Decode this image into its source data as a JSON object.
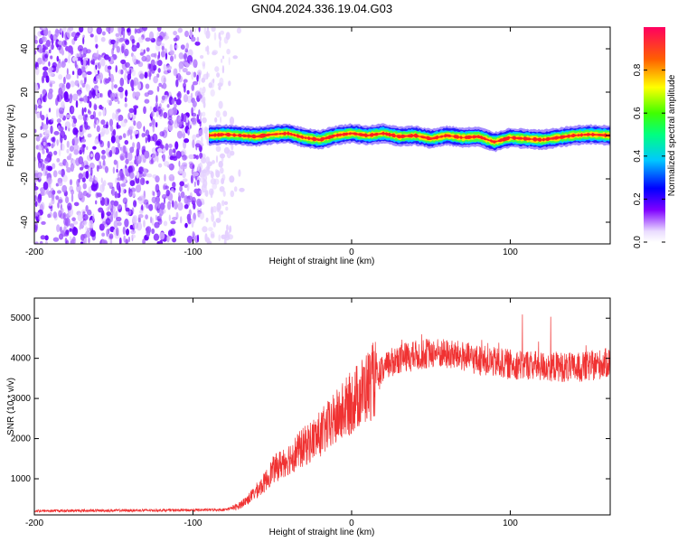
{
  "title": "GN04.2024.336.19.04.G03",
  "colors": {
    "snr_line": "#f03232",
    "purple": "#7f1fff",
    "axis": "#000000"
  },
  "chart_data": [
    {
      "type": "heatmap",
      "xlabel": "Height of straight line (km)",
      "ylabel": "Frequency (Hz)",
      "xlim": [
        -200,
        163
      ],
      "ylim": [
        -50,
        50
      ],
      "x_ticks": [
        "-200",
        "-100",
        "0",
        "100"
      ],
      "y_ticks": [
        "-40",
        "-20",
        "0",
        "20",
        "40"
      ],
      "colorbar_label": "Normalized spectral amplitude",
      "colorbar_ticks": [
        "0.0",
        "0.2",
        "0.4",
        "0.6",
        "0.8"
      ],
      "colorbar_range": [
        0,
        1
      ],
      "noise_region_x": [
        -200,
        -68
      ],
      "signal_x_start": -90,
      "signal_center_freq_hz": [
        [
          -90,
          0.0
        ],
        [
          -80,
          0.5
        ],
        [
          -70,
          0.0
        ],
        [
          -60,
          -0.5
        ],
        [
          -50,
          0.5
        ],
        [
          -40,
          1.0
        ],
        [
          -30,
          -1.0
        ],
        [
          -20,
          -2.0
        ],
        [
          -10,
          0.0
        ],
        [
          0,
          1.0
        ],
        [
          10,
          0.0
        ],
        [
          20,
          1.0
        ],
        [
          30,
          -0.5
        ],
        [
          40,
          0.0
        ],
        [
          50,
          -1.5
        ],
        [
          60,
          0.0
        ],
        [
          70,
          -1.0
        ],
        [
          80,
          -0.5
        ],
        [
          90,
          -3.0
        ],
        [
          100,
          -1.0
        ],
        [
          110,
          -1.5
        ],
        [
          120,
          -2.0
        ],
        [
          130,
          -1.0
        ],
        [
          140,
          0.0
        ],
        [
          150,
          0.5
        ],
        [
          163,
          0.0
        ]
      ]
    },
    {
      "type": "line",
      "xlabel": "Height of straight line (km)",
      "ylabel": "SNR (10 * v/v)",
      "xlim": [
        -200,
        163
      ],
      "ylim": [
        100,
        5500
      ],
      "x_ticks": [
        "-200",
        "-100",
        "0",
        "100"
      ],
      "y_ticks": [
        "1000",
        "2000",
        "3000",
        "4000",
        "5000"
      ],
      "series": [
        {
          "envelope_points": [
            [
              -200,
              200
            ],
            [
              -150,
              210
            ],
            [
              -100,
              220
            ],
            [
              -80,
              230
            ],
            [
              -72,
              300
            ],
            [
              -65,
              500
            ],
            [
              -60,
              700
            ],
            [
              -55,
              900
            ],
            [
              -50,
              1200
            ],
            [
              -40,
              1500
            ],
            [
              -30,
              1800
            ],
            [
              -20,
              2100
            ],
            [
              -10,
              2500
            ],
            [
              0,
              2900
            ],
            [
              10,
              3300
            ],
            [
              20,
              3700
            ],
            [
              25,
              3900
            ],
            [
              30,
              4000
            ],
            [
              40,
              4050
            ],
            [
              50,
              4150
            ],
            [
              60,
              4100
            ],
            [
              70,
              4050
            ],
            [
              80,
              3950
            ],
            [
              90,
              3900
            ],
            [
              100,
              3850
            ],
            [
              110,
              3850
            ],
            [
              120,
              3800
            ],
            [
              130,
              3800
            ],
            [
              140,
              3750
            ],
            [
              150,
              3800
            ],
            [
              163,
              3900
            ]
          ]
        }
      ]
    }
  ]
}
